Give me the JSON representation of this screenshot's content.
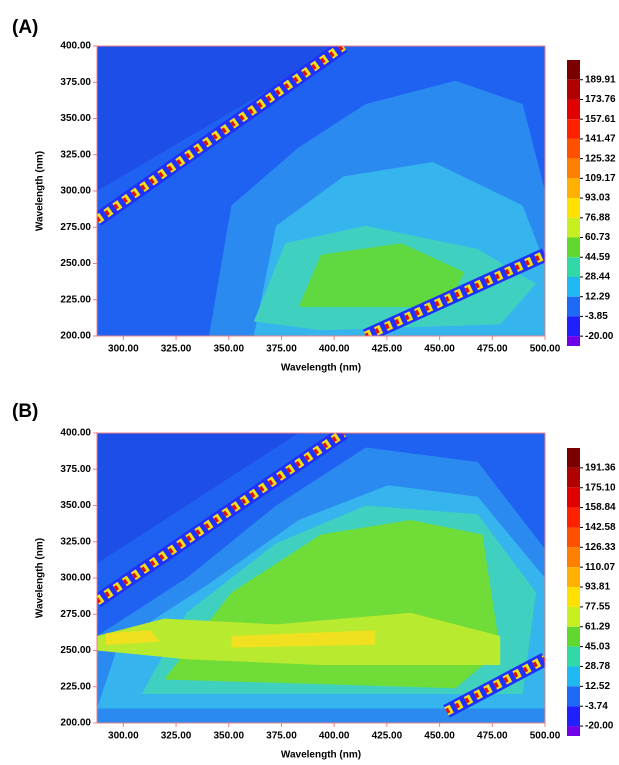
{
  "chart_data": [
    {
      "type": "contour",
      "label": "(A)",
      "xlabel": "Wavelength (nm)",
      "ylabel": "Wavelength (nm)",
      "xlim": [
        287.5,
        500
      ],
      "ylim": [
        200,
        400
      ],
      "xticks": [
        {
          "value": 300,
          "label": "300.00"
        },
        {
          "value": 325,
          "label": "325.00"
        },
        {
          "value": 350,
          "label": "350.00"
        },
        {
          "value": 375,
          "label": "375.00"
        },
        {
          "value": 400,
          "label": "400.00"
        },
        {
          "value": 425,
          "label": "425.00"
        },
        {
          "value": 450,
          "label": "450.00"
        },
        {
          "value": 475,
          "label": "475.00"
        },
        {
          "value": 500,
          "label": "500.00"
        }
      ],
      "yticks": [
        {
          "value": 200,
          "label": "200.00"
        },
        {
          "value": 225,
          "label": "225.00"
        },
        {
          "value": 250,
          "label": "250.00"
        },
        {
          "value": 275,
          "label": "275.00"
        },
        {
          "value": 300,
          "label": "300.00"
        },
        {
          "value": 325,
          "label": "325.00"
        },
        {
          "value": 350,
          "label": "350.00"
        },
        {
          "value": 375,
          "label": "375.00"
        },
        {
          "value": 400,
          "label": "400.00"
        }
      ],
      "colorbar_ticks": [
        189.91,
        173.76,
        157.61,
        141.47,
        125.32,
        109.17,
        93.03,
        76.88,
        60.73,
        44.59,
        28.44,
        12.29,
        -3.85,
        {
          "value": -20,
          "label": "-20.00"
        }
      ],
      "colormap": [
        "#7a0000",
        "#b00000",
        "#e00000",
        "#ff2000",
        "#ff5000",
        "#ff8000",
        "#ffb000",
        "#ffe000",
        "#c8f020",
        "#60d830",
        "#30d8a8",
        "#20b8f0",
        "#1e6af5",
        "#2020ff",
        "#7000e8"
      ]
    },
    {
      "type": "contour",
      "label": "(B)",
      "xlabel": "Wavelength (nm)",
      "ylabel": "Wavelength (nm)",
      "xlim": [
        287.5,
        500
      ],
      "ylim": [
        200,
        400
      ],
      "xticks": [
        {
          "value": 300,
          "label": "300.00"
        },
        {
          "value": 325,
          "label": "325.00"
        },
        {
          "value": 350,
          "label": "350.00"
        },
        {
          "value": 375,
          "label": "375.00"
        },
        {
          "value": 400,
          "label": "400.00"
        },
        {
          "value": 425,
          "label": "425.00"
        },
        {
          "value": 450,
          "label": "450.00"
        },
        {
          "value": 475,
          "label": "475.00"
        },
        {
          "value": 500,
          "label": "500.00"
        }
      ],
      "yticks": [
        {
          "value": 200,
          "label": "200.00"
        },
        {
          "value": 225,
          "label": "225.00"
        },
        {
          "value": 250,
          "label": "250.00"
        },
        {
          "value": 275,
          "label": "275.00"
        },
        {
          "value": 300,
          "label": "300.00"
        },
        {
          "value": 325,
          "label": "325.00"
        },
        {
          "value": 350,
          "label": "350.00"
        },
        {
          "value": 375,
          "label": "375.00"
        },
        {
          "value": 400,
          "label": "400.00"
        }
      ],
      "colorbar_ticks": [
        191.36,
        {
          "value": 175.1,
          "label": "175.10"
        },
        158.84,
        142.58,
        126.33,
        110.07,
        93.81,
        77.55,
        61.29,
        45.03,
        28.78,
        12.52,
        -3.74,
        {
          "value": -20,
          "label": "-20.00"
        }
      ],
      "colormap": [
        "#7a0000",
        "#b00000",
        "#e00000",
        "#ff2000",
        "#ff5000",
        "#ff8000",
        "#ffb000",
        "#ffe000",
        "#c8f020",
        "#60d830",
        "#30d8a8",
        "#20b8f0",
        "#1e6af5",
        "#2020ff",
        "#7000e8"
      ]
    }
  ]
}
